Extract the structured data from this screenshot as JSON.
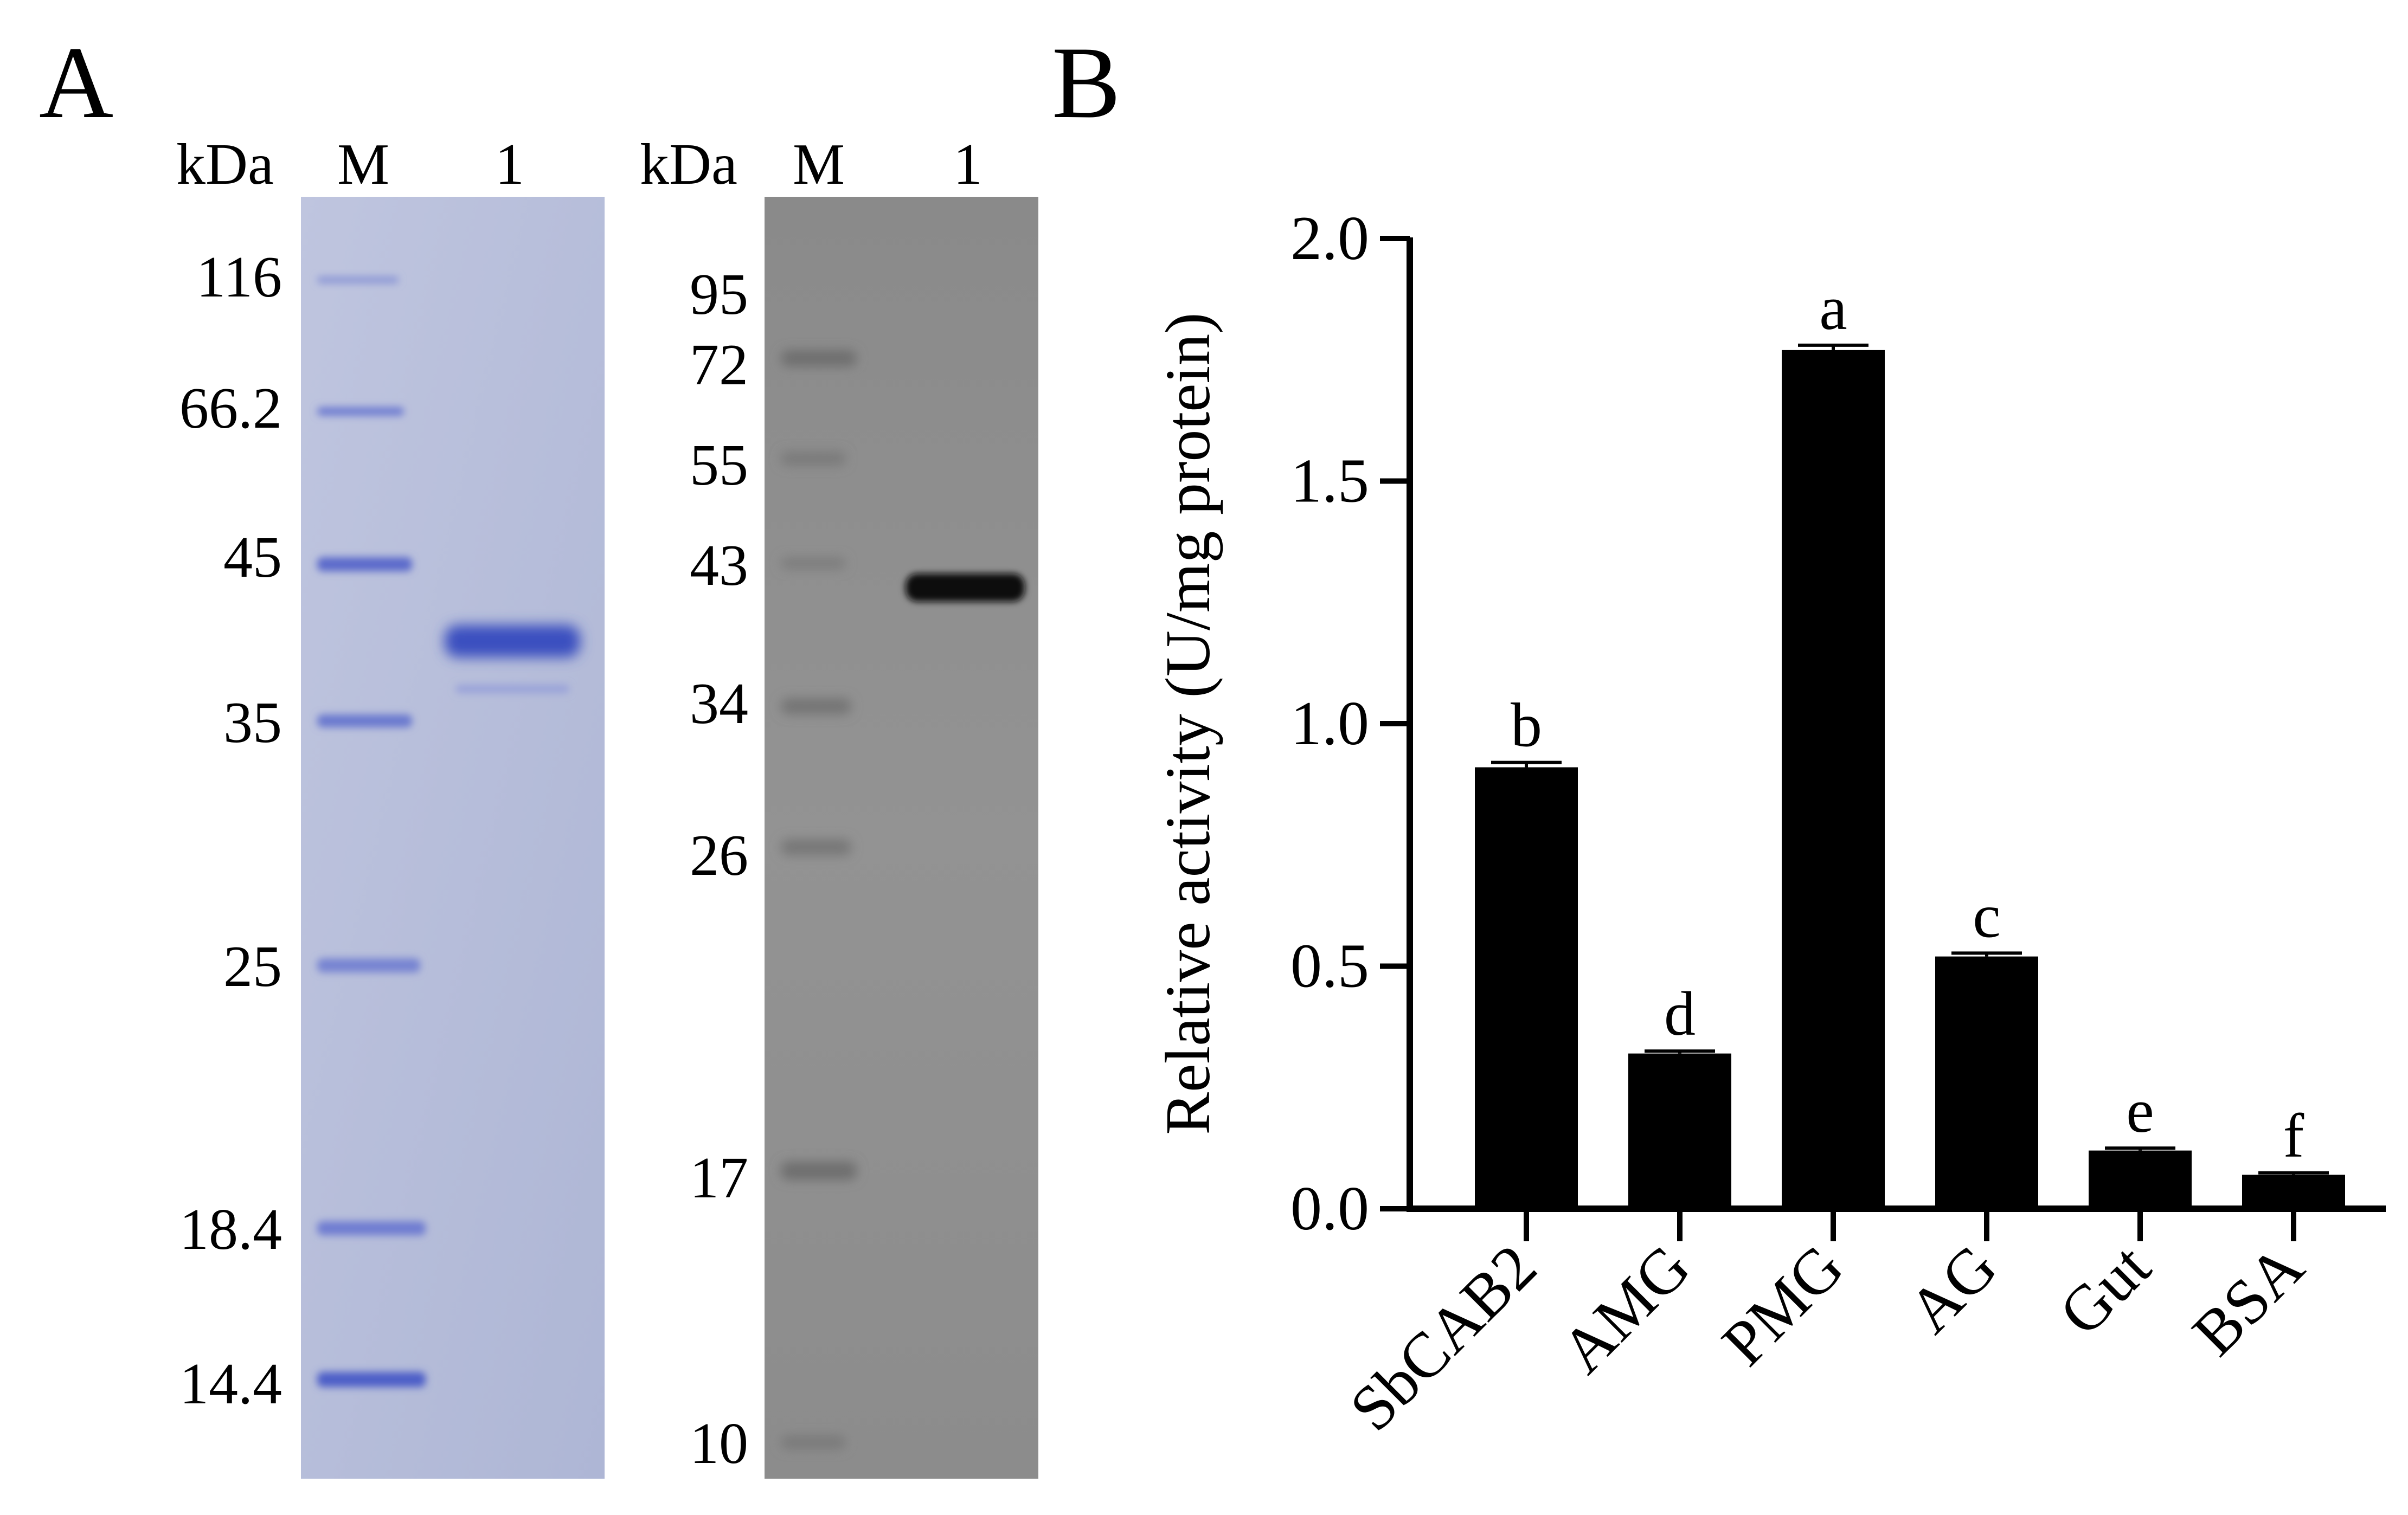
{
  "panel_a": {
    "letter": "A",
    "sds_gel": {
      "headers": [
        "kDa",
        "M",
        "1"
      ],
      "markers": [
        "116",
        "66.2",
        "45",
        "35",
        "25",
        "18.4",
        "14.4"
      ]
    },
    "western_blot": {
      "headers": [
        "kDa",
        "M",
        "1"
      ],
      "markers": [
        "95",
        "72",
        "55",
        "43",
        "34",
        "26",
        "17",
        "10"
      ]
    }
  },
  "panel_b": {
    "letter": "B"
  },
  "colors": {
    "gel_background": "#b5bcd8",
    "gel_band": "#3a4fc0",
    "blot_background": "#8e8e8e",
    "blot_band": "#111111",
    "bar_fill": "#000000"
  },
  "chart_data": {
    "type": "bar",
    "categories": [
      "SbCAB2",
      "AMG",
      "PMG",
      "AG",
      "Gut",
      "BSA"
    ],
    "values": [
      0.91,
      0.32,
      1.77,
      0.52,
      0.12,
      0.07
    ],
    "errors": [
      0.01,
      0.005,
      0.01,
      0.007,
      0.005,
      0.004
    ],
    "significance_letters": [
      "b",
      "d",
      "a",
      "c",
      "e",
      "f"
    ],
    "ylabel": "Relative activity (U/mg protein)",
    "ylim": [
      0,
      2.0
    ],
    "yticks": [
      "0.0",
      "0.5",
      "1.0",
      "1.5",
      "2.0"
    ],
    "grid": false
  }
}
